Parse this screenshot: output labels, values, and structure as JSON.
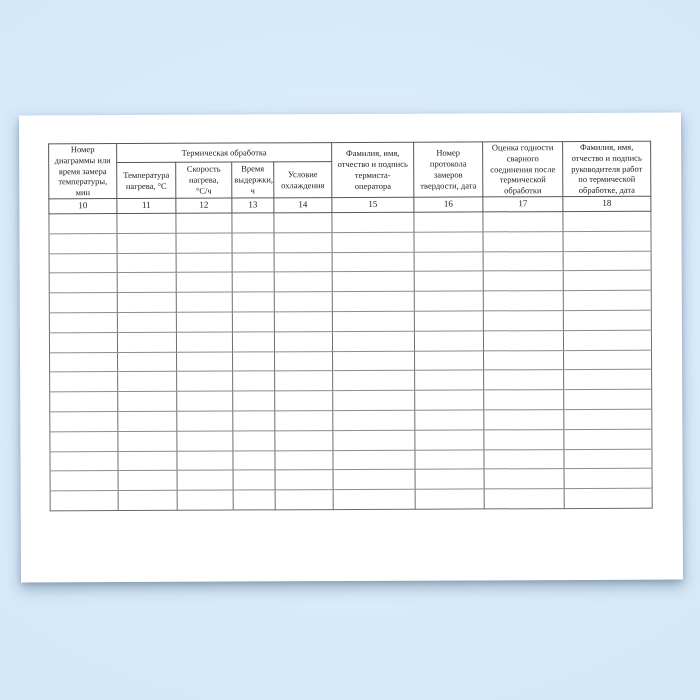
{
  "document": {
    "kind": "blank-log-table-page",
    "paper_color": "#ffffff",
    "background_color": "#d8ebfb",
    "grid_line_color": "#6f6f6f"
  },
  "table": {
    "group_header": "Термическая обработка",
    "columns": [
      {
        "number": "10",
        "label": "Номер\nдиаграммы или\nвремя замера\nтемпературы,\nмин"
      },
      {
        "number": "11",
        "label": "Температура\nнагрева, °С"
      },
      {
        "number": "12",
        "label": "Скорость\nнагрева,\n°С/ч"
      },
      {
        "number": "13",
        "label": "Время\nвыдержки,\nч"
      },
      {
        "number": "14",
        "label": "Условие\nохлаждения"
      },
      {
        "number": "15",
        "label": "Фамилия, имя,\nотчество и подпись\nтермиста-\nоператора"
      },
      {
        "number": "16",
        "label": "Номер\nпротокола\nзамеров\nтвердости, дата"
      },
      {
        "number": "17",
        "label": "Оценка годности\nсварного\nсоединения после\nтермической\nобработки"
      },
      {
        "number": "18",
        "label": "Фамилия, имя,\nотчество и подпись\nруководителя работ\nпо термической\nобработке, дата"
      }
    ],
    "empty_row_count": 15
  }
}
